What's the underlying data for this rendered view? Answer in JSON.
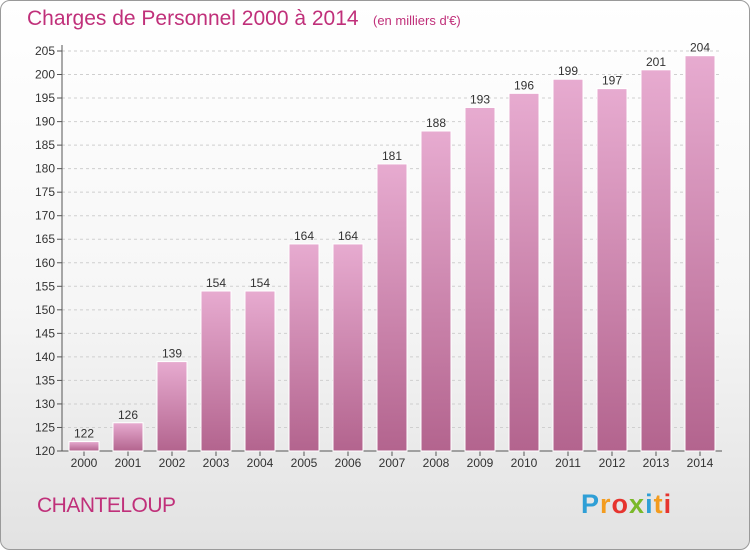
{
  "chart_data": {
    "type": "bar",
    "title": "Charges de Personnel 2000 à 2014",
    "subtitle": "(en milliers d'€)",
    "categories": [
      "2000",
      "2001",
      "2002",
      "2003",
      "2004",
      "2005",
      "2006",
      "2007",
      "2008",
      "2009",
      "2010",
      "2011",
      "2012",
      "2013",
      "2014"
    ],
    "values": [
      122,
      126,
      139,
      154,
      154,
      164,
      164,
      181,
      188,
      193,
      196,
      199,
      197,
      201,
      204
    ],
    "ylim": [
      120,
      205
    ],
    "yticks": [
      120,
      125,
      130,
      135,
      140,
      145,
      150,
      155,
      160,
      165,
      170,
      175,
      180,
      185,
      190,
      195,
      200,
      205
    ],
    "grid": true,
    "legend": "none",
    "colors": {
      "bar_top": "#e7abd0",
      "bar_bottom": "#b3648e",
      "title": "#c0307a"
    }
  },
  "footer": {
    "city": "CHANTELOUP",
    "logo_letters": [
      {
        "char": "P",
        "color": "#2f9fd6"
      },
      {
        "char": "r",
        "color": "#f39c1f"
      },
      {
        "char": "o",
        "color": "#e6342f"
      },
      {
        "char": "x",
        "color": "#7ab929"
      },
      {
        "char": "i",
        "color": "#2f9fd6"
      },
      {
        "char": "t",
        "color": "#f39c1f"
      },
      {
        "char": "i",
        "color": "#e6342f"
      }
    ]
  }
}
